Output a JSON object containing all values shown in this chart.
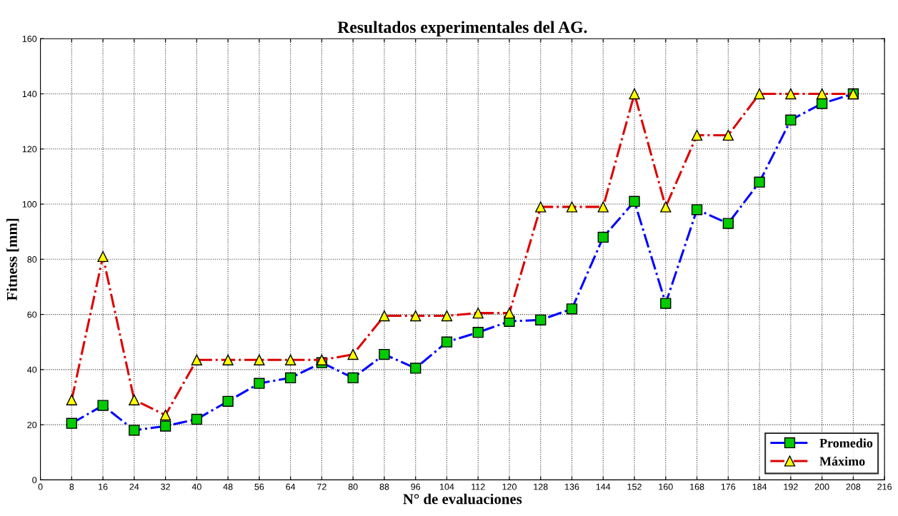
{
  "chart_data": {
    "type": "line",
    "title": "Resultados experimentales del AG.",
    "xlabel": "N° de evaluaciones",
    "ylabel": "Fitness [mm]",
    "x": [
      8,
      16,
      24,
      32,
      40,
      48,
      56,
      64,
      72,
      80,
      88,
      96,
      104,
      112,
      120,
      128,
      136,
      144,
      152,
      160,
      168,
      176,
      184,
      192,
      200,
      208
    ],
    "series": [
      {
        "name": "Promedio",
        "color": "#0000ff",
        "marker": "square",
        "line_style": "dashdot",
        "values": [
          20.5,
          27,
          18,
          19.5,
          22,
          28.5,
          35,
          37,
          42.5,
          37,
          45.5,
          40.5,
          50,
          53.5,
          57.5,
          58,
          62,
          88,
          101,
          64,
          98,
          93,
          108,
          130.5,
          136.5,
          140
        ]
      },
      {
        "name": "Máximo",
        "color": "#dd0000",
        "marker": "triangle",
        "line_style": "dashdot",
        "values": [
          29,
          81,
          29,
          23.5,
          43.5,
          43.5,
          43.5,
          43.5,
          43.5,
          45.5,
          59.5,
          59.5,
          59.5,
          60.5,
          60.5,
          99,
          99,
          99,
          140,
          99,
          125,
          125,
          140,
          140,
          140,
          140
        ]
      }
    ],
    "xlim": [
      0,
      216
    ],
    "xticks": [
      0,
      8,
      16,
      24,
      32,
      40,
      48,
      56,
      64,
      72,
      80,
      88,
      96,
      104,
      112,
      120,
      128,
      136,
      144,
      152,
      160,
      168,
      176,
      184,
      192,
      200,
      208,
      216
    ],
    "ylim": [
      0,
      160
    ],
    "yticks": [
      0,
      20,
      40,
      60,
      80,
      100,
      120,
      140,
      160
    ],
    "grid": true,
    "legend": "bottom right"
  }
}
